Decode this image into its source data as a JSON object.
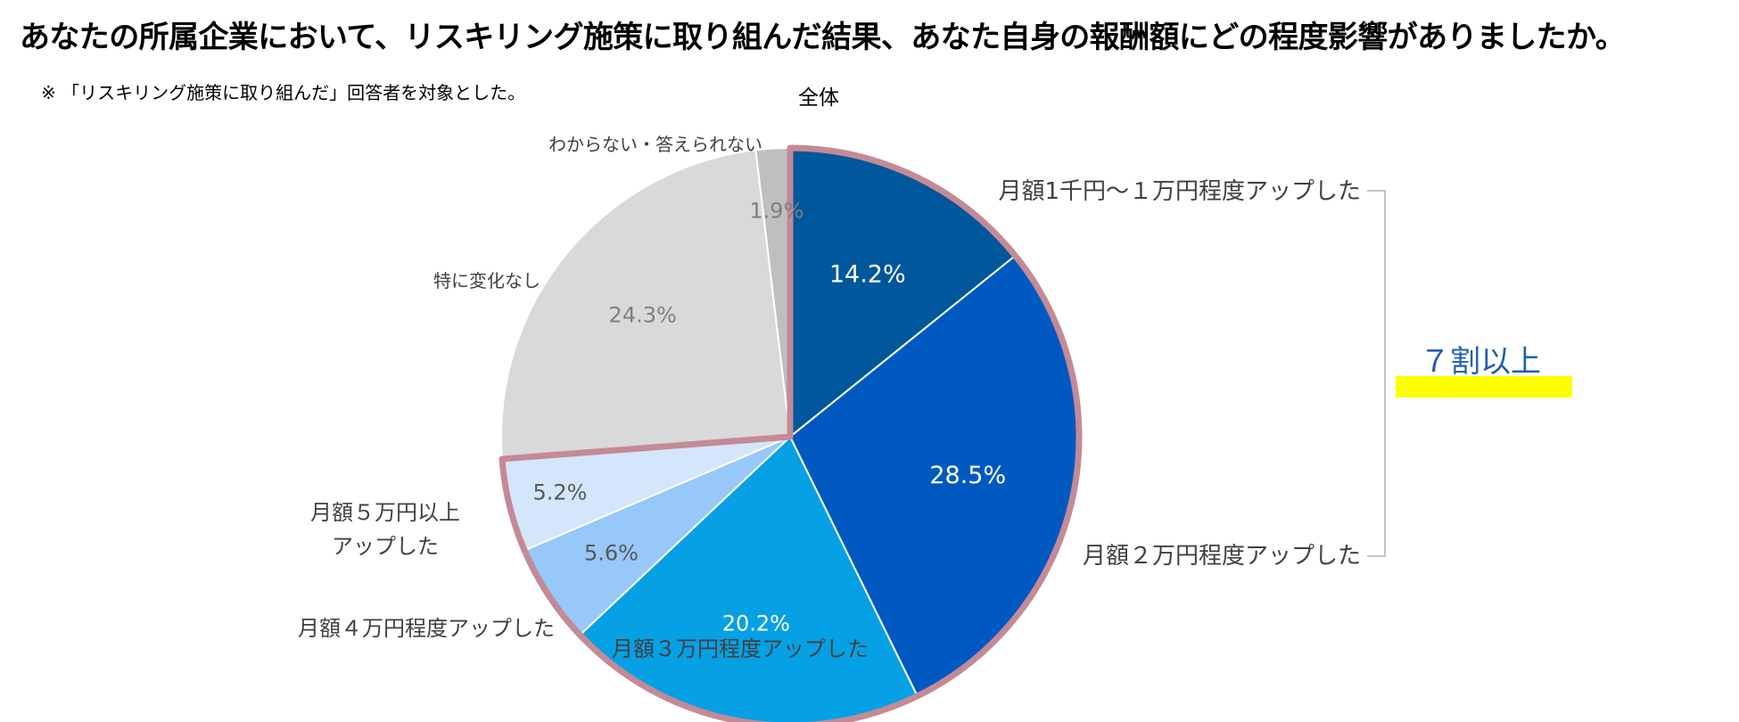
{
  "title": "あなたの所属企業において、リスキリング施策に取り組んだ結果、あなた自身の報酬額にどの程度影響がありましたか。",
  "note": "※ 「リスキリング施策に取り組んだ」回答者を対象とした。",
  "callout": {
    "text": "７割以上",
    "highlight_color": "#ffff00",
    "text_color": "#1f5fb0"
  },
  "chart_data": {
    "type": "pie",
    "title": "全体",
    "unit": "%",
    "start_angle_deg": 0,
    "direction": "clockwise",
    "emphasis_border_color": "#c48a96",
    "emphasized_categories": [
      "月額1千円〜１万円程度アップした",
      "月額２万円程度アップした",
      "月額３万円程度アップした",
      "月額４万円程度アップした",
      "月額５万円以上アップした"
    ],
    "slices": [
      {
        "label": "月額1千円〜１万円程度アップした",
        "value": 14.2,
        "value_label": "14.2%",
        "color": "#00579b",
        "text_color": "#ffffff"
      },
      {
        "label": "月額２万円程度アップした",
        "value": 28.5,
        "value_label": "28.5%",
        "color": "#0059c1",
        "text_color": "#ffffff"
      },
      {
        "label": "月額３万円程度アップした",
        "value": 20.2,
        "value_label": "20.2%",
        "color": "#06a0e5",
        "text_color": "#ffffff"
      },
      {
        "label": "月額４万円程度アップした",
        "value": 5.6,
        "value_label": "5.6%",
        "color": "#97c8f9",
        "text_color": "#595959"
      },
      {
        "label": "月額５万円以上アップした",
        "label_lines": [
          "月額５万円以上",
          "アップした"
        ],
        "value": 5.2,
        "value_label": "5.2%",
        "color": "#d4e6fc",
        "text_color": "#595959"
      },
      {
        "label": "特に変化なし",
        "value": 24.3,
        "value_label": "24.3%",
        "color": "#d9d9d9",
        "text_color": "#7f7f7f"
      },
      {
        "label": "わからない・答えられない",
        "value": 1.9,
        "value_label": "1.9%",
        "color": "#bfbfbf",
        "text_color": "#7f7f7f"
      }
    ]
  }
}
